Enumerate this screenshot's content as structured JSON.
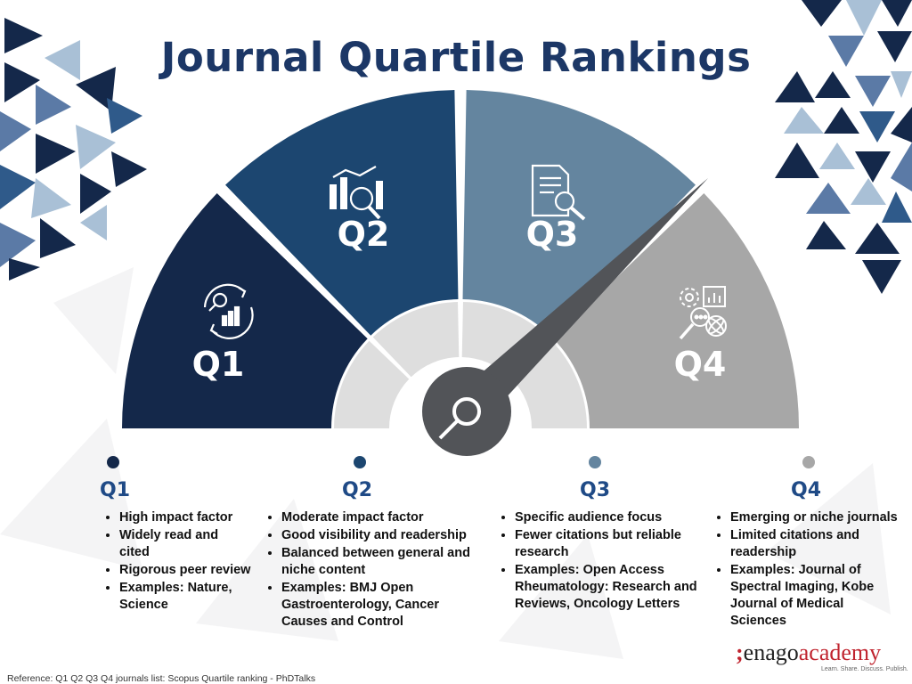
{
  "title": "Journal Quartile Rankings",
  "gauge": {
    "segments": [
      {
        "label": "Q1",
        "color": "#14284a",
        "icon": "magnifier-bar-chart-cycle-icon"
      },
      {
        "label": "Q2",
        "color": "#1c4670",
        "icon": "bar-chart-magnifier-icon"
      },
      {
        "label": "Q3",
        "color": "#64859f",
        "icon": "document-search-icon"
      },
      {
        "label": "Q4",
        "color": "#a7a7a7",
        "icon": "gears-chart-atom-icon"
      }
    ],
    "needle_color": "#525458"
  },
  "columns": [
    {
      "heading": "Q1",
      "dot_color": "#14284a",
      "bullets": [
        "High impact factor",
        "Widely read and cited",
        "Rigorous peer review",
        "Examples: Nature, Science"
      ]
    },
    {
      "heading": "Q2",
      "dot_color": "#1c4670",
      "bullets": [
        "Moderate impact factor",
        "Good visibility and readership",
        "Balanced between general and niche content",
        "Examples: BMJ Open Gastroenterology, Cancer Causes and Control"
      ]
    },
    {
      "heading": "Q3",
      "dot_color": "#64859f",
      "bullets": [
        "Specific audience focus",
        "Fewer citations but reliable research",
        "Examples: Open Access Rheumatology: Research and Reviews, Oncology Letters"
      ]
    },
    {
      "heading": "Q4",
      "dot_color": "#a7a7a7",
      "bullets": [
        "Emerging or niche journals",
        "Limited citations and readership",
        "Examples: Journal of Spectral Imaging, Kobe Journal of Medical Sciences"
      ]
    }
  ],
  "reference": "Reference: Q1 Q2 Q3 Q4 journals list: Scopus Quartile ranking - PhDTalks",
  "logo": {
    "mark": ";",
    "name": "enago",
    "suffix": "academy",
    "tagline": "Learn. Share. Discuss. Publish."
  },
  "colors": {
    "title": "#1c3766",
    "heading": "#1f4a86",
    "accent": "#c0242f"
  }
}
